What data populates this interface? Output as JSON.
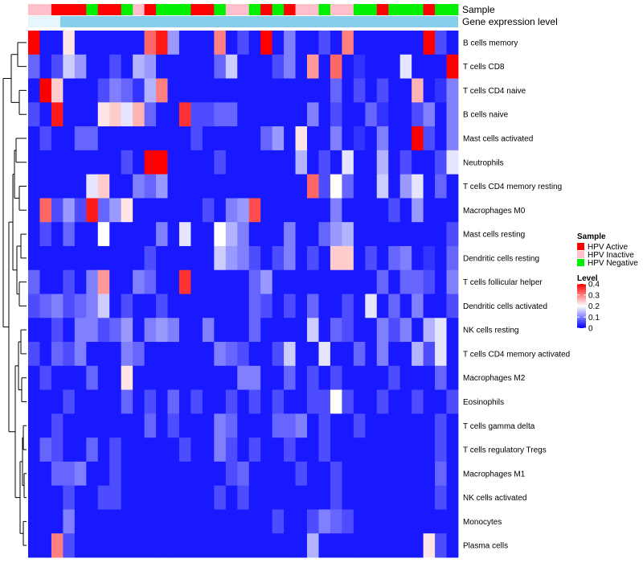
{
  "chart_data": {
    "type": "heatmap",
    "column_annotations": [
      {
        "label": "Sample",
        "name": "sample"
      },
      {
        "label": "Gene expression level",
        "name": "gene-expression-level"
      }
    ],
    "sample_groups": [
      {
        "label": "HPV Active",
        "color": "#ff0000"
      },
      {
        "label": "HPV Inactive",
        "color": "#ffc0cb"
      },
      {
        "label": "HPV Negative",
        "color": "#00ee00"
      }
    ],
    "sample_annotation": [
      1,
      1,
      0,
      0,
      0,
      2,
      0,
      0,
      2,
      1,
      0,
      2,
      2,
      2,
      0,
      0,
      2,
      1,
      1,
      2,
      0,
      2,
      0,
      1,
      1,
      2,
      1,
      1,
      2,
      2,
      0,
      2,
      2,
      2,
      0,
      2,
      2
    ],
    "gene_expression_color": "#87ceeb",
    "legend": {
      "sample_title": "Sample",
      "level_title": "Level",
      "level_ticks": [
        {
          "value": 0.4,
          "label": "0.4"
        },
        {
          "value": 0.3,
          "label": "0.3"
        },
        {
          "value": 0.2,
          "label": "0.2"
        },
        {
          "value": 0.1,
          "label": "0.1"
        },
        {
          "value": 0.0,
          "label": "0"
        }
      ],
      "level_range": [
        0,
        0.4
      ]
    },
    "color_scale": {
      "low": "#0000ff",
      "mid": "#ffffff",
      "high": "#ff0000",
      "mid_value": 0.2
    },
    "rows": [
      {
        "label": "B cells memory",
        "values": [
          0.4,
          0.02,
          0.02,
          0.22,
          0.02,
          0.02,
          0.02,
          0.02,
          0.02,
          0.02,
          0.32,
          0.38,
          0.12,
          0.02,
          0.02,
          0.02,
          0.3,
          0.02,
          0.06,
          0.02,
          0.4,
          0.02,
          0.1,
          0.02,
          0.02,
          0.06,
          0.02,
          0.3,
          0.02,
          0.02,
          0.02,
          0.02,
          0.02,
          0.02,
          0.4,
          0.06,
          0.02
        ]
      },
      {
        "label": "T cells CD8",
        "values": [
          0.08,
          0.02,
          0.06,
          0.16,
          0.12,
          0.02,
          0.02,
          0.06,
          0.02,
          0.14,
          0.12,
          0.02,
          0.02,
          0.02,
          0.02,
          0.02,
          0.08,
          0.16,
          0.02,
          0.02,
          0.02,
          0.06,
          0.1,
          0.02,
          0.28,
          0.02,
          0.32,
          0.02,
          0.04,
          0.02,
          0.02,
          0.02,
          0.18,
          0.02,
          0.02,
          0.02,
          0.4
        ]
      },
      {
        "label": "T cells CD4 naive",
        "values": [
          0.02,
          0.4,
          0.24,
          0.02,
          0.02,
          0.02,
          0.06,
          0.1,
          0.08,
          0.04,
          0.14,
          0.3,
          0.02,
          0.02,
          0.02,
          0.02,
          0.02,
          0.02,
          0.02,
          0.02,
          0.02,
          0.02,
          0.02,
          0.02,
          0.02,
          0.02,
          0.08,
          0.02,
          0.06,
          0.02,
          0.06,
          0.02,
          0.02,
          0.26,
          0.02,
          0.04,
          0.1
        ]
      },
      {
        "label": "B cells naive",
        "values": [
          0.06,
          0.02,
          0.38,
          0.02,
          0.02,
          0.02,
          0.22,
          0.24,
          0.18,
          0.26,
          0.08,
          0.02,
          0.02,
          0.36,
          0.06,
          0.06,
          0.08,
          0.08,
          0.02,
          0.02,
          0.02,
          0.02,
          0.02,
          0.02,
          0.1,
          0.02,
          0.06,
          0.02,
          0.02,
          0.08,
          0.04,
          0.02,
          0.02,
          0.06,
          0.1,
          0.02,
          0.1
        ]
      },
      {
        "label": "Mast cells activated",
        "values": [
          0.02,
          0.06,
          0.02,
          0.02,
          0.08,
          0.08,
          0.02,
          0.02,
          0.02,
          0.02,
          0.02,
          0.02,
          0.02,
          0.02,
          0.06,
          0.02,
          0.02,
          0.02,
          0.02,
          0.02,
          0.08,
          0.12,
          0.02,
          0.22,
          0.02,
          0.02,
          0.1,
          0.02,
          0.04,
          0.02,
          0.1,
          0.02,
          0.02,
          0.4,
          0.06,
          0.02,
          0.1
        ]
      },
      {
        "label": "Neutrophils",
        "values": [
          0.02,
          0.02,
          0.02,
          0.02,
          0.02,
          0.02,
          0.02,
          0.02,
          0.06,
          0.02,
          0.4,
          0.4,
          0.02,
          0.02,
          0.02,
          0.02,
          0.06,
          0.02,
          0.02,
          0.02,
          0.02,
          0.02,
          0.02,
          0.14,
          0.02,
          0.06,
          0.02,
          0.18,
          0.02,
          0.02,
          0.14,
          0.02,
          0.06,
          0.02,
          0.02,
          0.06,
          0.18
        ]
      },
      {
        "label": "T cells CD4 memory resting",
        "values": [
          0.02,
          0.02,
          0.02,
          0.02,
          0.02,
          0.18,
          0.24,
          0.02,
          0.02,
          0.1,
          0.08,
          0.12,
          0.02,
          0.02,
          0.02,
          0.02,
          0.02,
          0.02,
          0.02,
          0.02,
          0.02,
          0.02,
          0.02,
          0.02,
          0.32,
          0.06,
          0.2,
          0.08,
          0.02,
          0.02,
          0.16,
          0.02,
          0.12,
          0.18,
          0.02,
          0.08,
          0.02
        ]
      },
      {
        "label": "Macrophages M0",
        "values": [
          0.02,
          0.32,
          0.06,
          0.12,
          0.06,
          0.38,
          0.08,
          0.12,
          0.22,
          0.02,
          0.02,
          0.02,
          0.02,
          0.02,
          0.02,
          0.06,
          0.02,
          0.1,
          0.12,
          0.34,
          0.02,
          0.02,
          0.02,
          0.02,
          0.02,
          0.02,
          0.1,
          0.02,
          0.02,
          0.02,
          0.02,
          0.06,
          0.02,
          0.12,
          0.02,
          0.02,
          0.02
        ]
      },
      {
        "label": "Mast cells resting",
        "values": [
          0.02,
          0.06,
          0.02,
          0.08,
          0.02,
          0.02,
          0.2,
          0.02,
          0.02,
          0.02,
          0.02,
          0.1,
          0.02,
          0.18,
          0.02,
          0.02,
          0.2,
          0.14,
          0.1,
          0.02,
          0.02,
          0.02,
          0.1,
          0.02,
          0.02,
          0.08,
          0.12,
          0.14,
          0.02,
          0.02,
          0.02,
          0.02,
          0.02,
          0.02,
          0.02,
          0.02,
          0.06
        ]
      },
      {
        "label": "Dendritic cells resting",
        "values": [
          0.02,
          0.02,
          0.02,
          0.02,
          0.02,
          0.02,
          0.02,
          0.02,
          0.02,
          0.02,
          0.06,
          0.02,
          0.02,
          0.02,
          0.02,
          0.02,
          0.16,
          0.12,
          0.1,
          0.06,
          0.02,
          0.06,
          0.1,
          0.02,
          0.06,
          0.02,
          0.24,
          0.24,
          0.02,
          0.06,
          0.02,
          0.08,
          0.1,
          0.02,
          0.04,
          0.02,
          0.08
        ]
      },
      {
        "label": "T cells follicular helper",
        "values": [
          0.08,
          0.02,
          0.02,
          0.06,
          0.02,
          0.1,
          0.28,
          0.02,
          0.02,
          0.1,
          0.08,
          0.02,
          0.02,
          0.36,
          0.02,
          0.02,
          0.02,
          0.02,
          0.02,
          0.08,
          0.12,
          0.02,
          0.02,
          0.02,
          0.02,
          0.02,
          0.02,
          0.02,
          0.02,
          0.02,
          0.08,
          0.02,
          0.08,
          0.08,
          0.06,
          0.02,
          0.1
        ]
      },
      {
        "label": "Dendritic cells activated",
        "values": [
          0.06,
          0.08,
          0.1,
          0.06,
          0.08,
          0.1,
          0.16,
          0.02,
          0.06,
          0.02,
          0.02,
          0.06,
          0.02,
          0.02,
          0.02,
          0.02,
          0.02,
          0.02,
          0.02,
          0.08,
          0.06,
          0.02,
          0.06,
          0.02,
          0.08,
          0.02,
          0.02,
          0.06,
          0.02,
          0.18,
          0.02,
          0.08,
          0.02,
          0.1,
          0.02,
          0.02,
          0.06
        ]
      },
      {
        "label": "NK cells resting",
        "values": [
          0.02,
          0.02,
          0.06,
          0.02,
          0.1,
          0.1,
          0.06,
          0.08,
          0.12,
          0.02,
          0.1,
          0.12,
          0.1,
          0.02,
          0.02,
          0.1,
          0.02,
          0.02,
          0.02,
          0.08,
          0.02,
          0.02,
          0.02,
          0.02,
          0.16,
          0.02,
          0.08,
          0.06,
          0.02,
          0.02,
          0.1,
          0.06,
          0.1,
          0.02,
          0.14,
          0.18,
          0.02
        ]
      },
      {
        "label": "T cells CD4 memory activated",
        "values": [
          0.06,
          0.02,
          0.08,
          0.06,
          0.1,
          0.02,
          0.02,
          0.02,
          0.1,
          0.08,
          0.02,
          0.02,
          0.02,
          0.02,
          0.02,
          0.02,
          0.1,
          0.08,
          0.06,
          0.02,
          0.02,
          0.06,
          0.16,
          0.02,
          0.02,
          0.18,
          0.02,
          0.02,
          0.08,
          0.02,
          0.1,
          0.02,
          0.02,
          0.14,
          0.06,
          0.18,
          0.02
        ]
      },
      {
        "label": "Macrophages M2",
        "values": [
          0.02,
          0.06,
          0.02,
          0.02,
          0.02,
          0.08,
          0.02,
          0.02,
          0.22,
          0.02,
          0.02,
          0.02,
          0.02,
          0.02,
          0.02,
          0.02,
          0.02,
          0.02,
          0.1,
          0.1,
          0.02,
          0.02,
          0.08,
          0.02,
          0.06,
          0.02,
          0.06,
          0.02,
          0.02,
          0.02,
          0.02,
          0.06,
          0.02,
          0.02,
          0.02,
          0.08,
          0.02
        ]
      },
      {
        "label": "Eosinophils",
        "values": [
          0.02,
          0.02,
          0.02,
          0.06,
          0.02,
          0.02,
          0.02,
          0.02,
          0.08,
          0.02,
          0.06,
          0.02,
          0.08,
          0.02,
          0.06,
          0.02,
          0.02,
          0.06,
          0.02,
          0.06,
          0.02,
          0.06,
          0.02,
          0.02,
          0.06,
          0.06,
          0.2,
          0.06,
          0.02,
          0.02,
          0.06,
          0.02,
          0.02,
          0.06,
          0.02,
          0.02,
          0.06
        ]
      },
      {
        "label": "T cells gamma delta",
        "values": [
          0.02,
          0.02,
          0.06,
          0.02,
          0.02,
          0.02,
          0.02,
          0.02,
          0.02,
          0.02,
          0.08,
          0.02,
          0.06,
          0.02,
          0.02,
          0.02,
          0.1,
          0.08,
          0.02,
          0.02,
          0.02,
          0.08,
          0.08,
          0.1,
          0.02,
          0.06,
          0.02,
          0.02,
          0.06,
          0.02,
          0.02,
          0.02,
          0.02,
          0.02,
          0.02,
          0.06,
          0.02
        ]
      },
      {
        "label": "T cells regulatory  Tregs",
        "values": [
          0.02,
          0.08,
          0.06,
          0.02,
          0.02,
          0.08,
          0.02,
          0.06,
          0.02,
          0.02,
          0.02,
          0.02,
          0.02,
          0.06,
          0.02,
          0.02,
          0.1,
          0.06,
          0.02,
          0.06,
          0.02,
          0.02,
          0.06,
          0.02,
          0.02,
          0.06,
          0.02,
          0.02,
          0.02,
          0.02,
          0.02,
          0.02,
          0.02,
          0.02,
          0.02,
          0.06,
          0.02
        ]
      },
      {
        "label": "Macrophages M1",
        "values": [
          0.02,
          0.02,
          0.08,
          0.08,
          0.1,
          0.02,
          0.02,
          0.06,
          0.02,
          0.02,
          0.02,
          0.02,
          0.02,
          0.02,
          0.02,
          0.02,
          0.02,
          0.06,
          0.08,
          0.02,
          0.02,
          0.02,
          0.02,
          0.06,
          0.02,
          0.02,
          0.06,
          0.02,
          0.02,
          0.02,
          0.02,
          0.02,
          0.02,
          0.02,
          0.02,
          0.08,
          0.02
        ]
      },
      {
        "label": "NK cells activated",
        "values": [
          0.02,
          0.02,
          0.02,
          0.06,
          0.02,
          0.02,
          0.06,
          0.06,
          0.02,
          0.02,
          0.02,
          0.02,
          0.02,
          0.02,
          0.02,
          0.02,
          0.06,
          0.02,
          0.06,
          0.02,
          0.02,
          0.02,
          0.02,
          0.02,
          0.02,
          0.02,
          0.06,
          0.02,
          0.02,
          0.02,
          0.02,
          0.02,
          0.02,
          0.02,
          0.02,
          0.06,
          0.02
        ]
      },
      {
        "label": "Monocytes",
        "values": [
          0.02,
          0.02,
          0.02,
          0.1,
          0.02,
          0.02,
          0.02,
          0.02,
          0.02,
          0.02,
          0.02,
          0.02,
          0.02,
          0.02,
          0.02,
          0.02,
          0.02,
          0.02,
          0.02,
          0.02,
          0.02,
          0.06,
          0.02,
          0.02,
          0.06,
          0.1,
          0.08,
          0.06,
          0.02,
          0.02,
          0.02,
          0.02,
          0.02,
          0.02,
          0.02,
          0.02,
          0.02
        ]
      },
      {
        "label": "Plasma cells",
        "values": [
          0.02,
          0.02,
          0.3,
          0.06,
          0.02,
          0.02,
          0.02,
          0.02,
          0.02,
          0.02,
          0.02,
          0.02,
          0.02,
          0.02,
          0.02,
          0.02,
          0.02,
          0.02,
          0.02,
          0.02,
          0.02,
          0.02,
          0.02,
          0.02,
          0.14,
          0.02,
          0.02,
          0.02,
          0.02,
          0.02,
          0.02,
          0.02,
          0.02,
          0.02,
          0.22,
          0.06,
          0.02
        ]
      }
    ]
  }
}
